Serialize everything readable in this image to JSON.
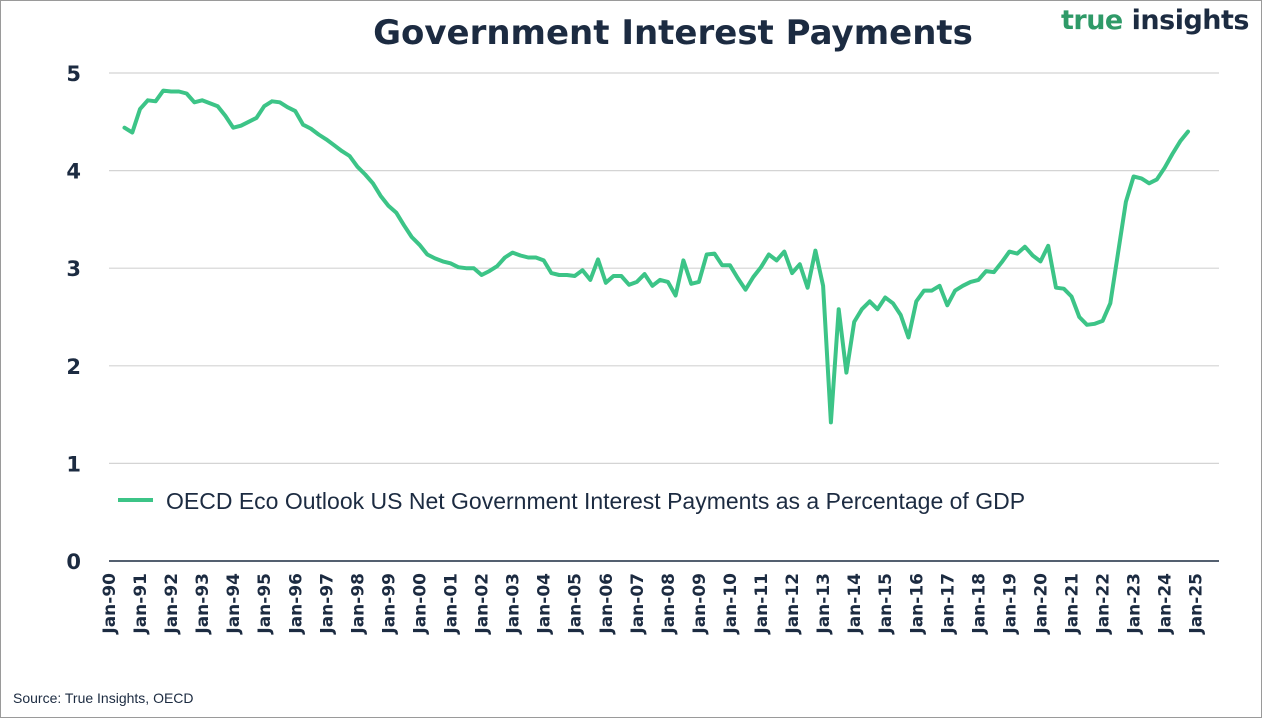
{
  "brand": {
    "word1": "true",
    "word2": "insights"
  },
  "source_note": "Source: True Insights, OECD",
  "colors": {
    "line": "#3cc487",
    "text": "#1c2b41",
    "grid": "#d4d4d4",
    "axis": "#1c2b41",
    "brand_green": "#2f9a68"
  },
  "chart_data": {
    "type": "line",
    "title": "Government Interest Payments",
    "xlabel": "",
    "ylabel": "",
    "ylim": [
      0,
      5
    ],
    "yticks": [
      "0",
      "1",
      "2",
      "3",
      "4",
      "5"
    ],
    "xticks": [
      "Jan-90",
      "Jan-91",
      "Jan-92",
      "Jan-93",
      "Jan-94",
      "Jan-95",
      "Jan-96",
      "Jan-97",
      "Jan-98",
      "Jan-99",
      "Jan-00",
      "Jan-01",
      "Jan-02",
      "Jan-03",
      "Jan-04",
      "Jan-05",
      "Jan-06",
      "Jan-07",
      "Jan-08",
      "Jan-09",
      "Jan-10",
      "Jan-11",
      "Jan-12",
      "Jan-13",
      "Jan-14",
      "Jan-15",
      "Jan-16",
      "Jan-17",
      "Jan-18",
      "Jan-19",
      "Jan-20",
      "Jan-21",
      "Jan-22",
      "Jan-23",
      "Jan-24",
      "Jan-25"
    ],
    "grid": true,
    "legend_position": "inside-bottom",
    "series": [
      {
        "name": "OECD Eco Outlook US Net Government Interest Payments as a Percentage of GDP",
        "color": "#3cc487",
        "points": [
          [
            1990.5,
            4.44
          ],
          [
            1990.75,
            4.39
          ],
          [
            1991.0,
            4.63
          ],
          [
            1991.25,
            4.72
          ],
          [
            1991.5,
            4.71
          ],
          [
            1991.75,
            4.82
          ],
          [
            1992.0,
            4.81
          ],
          [
            1992.25,
            4.81
          ],
          [
            1992.5,
            4.79
          ],
          [
            1992.75,
            4.7
          ],
          [
            1993.0,
            4.72
          ],
          [
            1993.25,
            4.69
          ],
          [
            1993.5,
            4.66
          ],
          [
            1993.75,
            4.56
          ],
          [
            1994.0,
            4.44
          ],
          [
            1994.25,
            4.46
          ],
          [
            1994.5,
            4.5
          ],
          [
            1994.75,
            4.54
          ],
          [
            1995.0,
            4.66
          ],
          [
            1995.25,
            4.71
          ],
          [
            1995.5,
            4.7
          ],
          [
            1995.75,
            4.65
          ],
          [
            1996.0,
            4.61
          ],
          [
            1996.25,
            4.47
          ],
          [
            1996.5,
            4.43
          ],
          [
            1996.75,
            4.37
          ],
          [
            1997.0,
            4.32
          ],
          [
            1997.25,
            4.26
          ],
          [
            1997.5,
            4.2
          ],
          [
            1997.75,
            4.15
          ],
          [
            1998.0,
            4.04
          ],
          [
            1998.25,
            3.96
          ],
          [
            1998.5,
            3.87
          ],
          [
            1998.75,
            3.74
          ],
          [
            1999.0,
            3.64
          ],
          [
            1999.25,
            3.57
          ],
          [
            1999.5,
            3.44
          ],
          [
            1999.75,
            3.32
          ],
          [
            2000.0,
            3.24
          ],
          [
            2000.25,
            3.14
          ],
          [
            2000.5,
            3.1
          ],
          [
            2000.75,
            3.07
          ],
          [
            2001.0,
            3.05
          ],
          [
            2001.25,
            3.01
          ],
          [
            2001.5,
            3.0
          ],
          [
            2001.75,
            3.0
          ],
          [
            2002.0,
            2.93
          ],
          [
            2002.25,
            2.97
          ],
          [
            2002.5,
            3.02
          ],
          [
            2002.75,
            3.11
          ],
          [
            2003.0,
            3.16
          ],
          [
            2003.25,
            3.13
          ],
          [
            2003.5,
            3.11
          ],
          [
            2003.75,
            3.11
          ],
          [
            2004.0,
            3.08
          ],
          [
            2004.25,
            2.95
          ],
          [
            2004.5,
            2.93
          ],
          [
            2004.75,
            2.93
          ],
          [
            2005.0,
            2.92
          ],
          [
            2005.25,
            2.98
          ],
          [
            2005.5,
            2.88
          ],
          [
            2005.75,
            3.09
          ],
          [
            2006.0,
            2.85
          ],
          [
            2006.25,
            2.92
          ],
          [
            2006.5,
            2.92
          ],
          [
            2006.75,
            2.83
          ],
          [
            2007.0,
            2.86
          ],
          [
            2007.25,
            2.94
          ],
          [
            2007.5,
            2.82
          ],
          [
            2007.75,
            2.88
          ],
          [
            2008.0,
            2.86
          ],
          [
            2008.25,
            2.72
          ],
          [
            2008.5,
            3.08
          ],
          [
            2008.75,
            2.84
          ],
          [
            2009.0,
            2.86
          ],
          [
            2009.25,
            3.14
          ],
          [
            2009.5,
            3.15
          ],
          [
            2009.75,
            3.03
          ],
          [
            2010.0,
            3.03
          ],
          [
            2010.25,
            2.9
          ],
          [
            2010.5,
            2.78
          ],
          [
            2010.75,
            2.91
          ],
          [
            2011.0,
            3.01
          ],
          [
            2011.25,
            3.14
          ],
          [
            2011.5,
            3.08
          ],
          [
            2011.75,
            3.17
          ],
          [
            2012.0,
            2.95
          ],
          [
            2012.25,
            3.04
          ],
          [
            2012.5,
            2.8
          ],
          [
            2012.75,
            3.18
          ],
          [
            2013.0,
            2.82
          ],
          [
            2013.25,
            1.42
          ],
          [
            2013.5,
            2.58
          ],
          [
            2013.75,
            1.93
          ],
          [
            2014.0,
            2.45
          ],
          [
            2014.25,
            2.58
          ],
          [
            2014.5,
            2.66
          ],
          [
            2014.75,
            2.58
          ],
          [
            2015.0,
            2.7
          ],
          [
            2015.25,
            2.64
          ],
          [
            2015.5,
            2.52
          ],
          [
            2015.75,
            2.29
          ],
          [
            2016.0,
            2.66
          ],
          [
            2016.25,
            2.77
          ],
          [
            2016.5,
            2.77
          ],
          [
            2016.75,
            2.82
          ],
          [
            2017.0,
            2.62
          ],
          [
            2017.25,
            2.77
          ],
          [
            2017.5,
            2.82
          ],
          [
            2017.75,
            2.86
          ],
          [
            2018.0,
            2.88
          ],
          [
            2018.25,
            2.97
          ],
          [
            2018.5,
            2.96
          ],
          [
            2018.75,
            3.06
          ],
          [
            2019.0,
            3.17
          ],
          [
            2019.25,
            3.15
          ],
          [
            2019.5,
            3.22
          ],
          [
            2019.75,
            3.13
          ],
          [
            2020.0,
            3.07
          ],
          [
            2020.25,
            3.23
          ],
          [
            2020.5,
            2.8
          ],
          [
            2020.75,
            2.79
          ],
          [
            2021.0,
            2.71
          ],
          [
            2021.25,
            2.5
          ],
          [
            2021.5,
            2.42
          ],
          [
            2021.75,
            2.43
          ],
          [
            2022.0,
            2.46
          ],
          [
            2022.25,
            2.64
          ],
          [
            2022.5,
            3.16
          ],
          [
            2022.75,
            3.68
          ],
          [
            2023.0,
            3.94
          ],
          [
            2023.25,
            3.92
          ],
          [
            2023.5,
            3.87
          ],
          [
            2023.75,
            3.91
          ],
          [
            2024.0,
            4.03
          ],
          [
            2024.25,
            4.17
          ],
          [
            2024.5,
            4.3
          ],
          [
            2024.75,
            4.4
          ]
        ]
      }
    ]
  }
}
